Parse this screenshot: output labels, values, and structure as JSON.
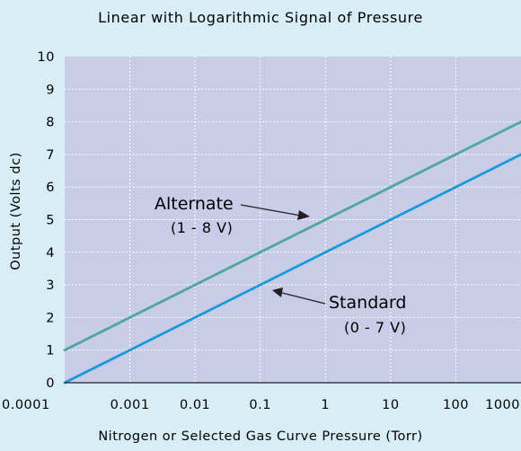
{
  "chart_data": {
    "type": "line",
    "title": "Linear with Logarithmic Signal of Pressure",
    "xlabel": "Nitrogen or Selected Gas Curve Pressure (Torr)",
    "ylabel": "Output (Volts dc)",
    "x_scale": "log",
    "xlim": [
      0.0001,
      1000
    ],
    "ylim": [
      0,
      10
    ],
    "x_ticks": [
      0.0001,
      0.001,
      0.01,
      0.1,
      1,
      10,
      100,
      1000
    ],
    "x_tick_labels": [
      "0.0001",
      "0.001",
      "0.01",
      "0.1",
      "1",
      "10",
      "100",
      "1000"
    ],
    "y_ticks": [
      0,
      1,
      2,
      3,
      4,
      5,
      6,
      7,
      8,
      9,
      10
    ],
    "y_tick_labels": [
      "0",
      "1",
      "2",
      "3",
      "4",
      "5",
      "6",
      "7",
      "8",
      "9",
      "10"
    ],
    "grid": true,
    "series": [
      {
        "id": "alternate",
        "x": [
          0.0001,
          0.001,
          0.01,
          0.1,
          1,
          10,
          100,
          1000
        ],
        "y": [
          1,
          2,
          3,
          4,
          5,
          6,
          7,
          8
        ],
        "color": "#4fa69c"
      },
      {
        "id": "standard",
        "x": [
          0.0001,
          0.001,
          0.01,
          0.1,
          1,
          10,
          100,
          1000
        ],
        "y": [
          0,
          1,
          2,
          3,
          4,
          5,
          6,
          7
        ],
        "color": "#1a9ad8"
      }
    ],
    "annotations": [
      {
        "id": "alternate",
        "label": "Alternate",
        "sublabel": "(1 - 8 V)"
      },
      {
        "id": "standard",
        "label": "Standard",
        "sublabel": "(0 - 7 V)"
      }
    ],
    "colors": {
      "background": "#d8eef6",
      "plot_area": "#c8cce6",
      "grid": "#ffffff",
      "axis": "#231f20"
    }
  }
}
